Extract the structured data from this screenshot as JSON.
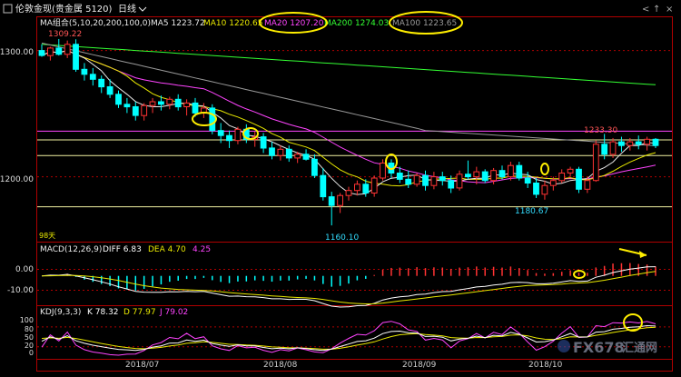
{
  "titlebar": {
    "icon": "chart-icon",
    "symbol": "伦敦金现(贵金属 5120)",
    "period": "日线",
    "dropdown_icon": "chevron-down-icon",
    "window_controls": [
      "<",
      "↑",
      "×"
    ]
  },
  "ma_legend": {
    "label": "MA组合(5,10,20,200,100,0)",
    "items": [
      {
        "text": "MA5 1223.72",
        "color": "#e8e8e8"
      },
      {
        "text": "MA10 1220.65",
        "color": "#e8e800"
      },
      {
        "text": "MA20 1207.20",
        "color": "#ff44ff"
      },
      {
        "text": "MA200 1274.03",
        "color": "#33ff33"
      },
      {
        "text": "MA100 1223.65",
        "color": "#999999"
      }
    ]
  },
  "price_axis": [
    "1300.00",
    "1200.00"
  ],
  "annotations": {
    "high_label": "1309.22",
    "low_label": "1160.10",
    "recent_high": "1233.30",
    "recent_low": "1180.67",
    "days": "98天"
  },
  "macd_legend": {
    "label": "MACD(12,26,9)",
    "diff": "DIFF 6.83",
    "dea": "DEA 4.70",
    "macd": "4.25"
  },
  "macd_axis": [
    "0.00",
    "-10.00"
  ],
  "kdj_legend": {
    "label": "KDJ(9,3,3)",
    "k": "K 78.32",
    "d": "D 77.97",
    "j": "J 79.02"
  },
  "kdj_axis": [
    "100",
    "80",
    "50",
    "20",
    "0"
  ],
  "x_axis": [
    "2018/07",
    "2018/08",
    "2018/09",
    "2018/10"
  ],
  "watermark": {
    "logo": "FX678",
    "text": "汇通网"
  },
  "colors": {
    "up": "#ff3333",
    "down": "#00ffff",
    "ma5": "#e8e8e8",
    "ma10": "#e8e800",
    "ma20": "#ff44ff",
    "ma200": "#33ff33",
    "ma100": "#999999",
    "diff": "#ffffff",
    "dea": "#e8e800",
    "k": "#ffffff",
    "d": "#e8e800",
    "j": "#ff44ff",
    "highlight": "#ffee00"
  },
  "chart_data": {
    "type": "candlestick",
    "y_range": [
      1150,
      1315
    ],
    "candles": [
      {
        "o": 1300,
        "h": 1305,
        "l": 1295,
        "c": 1296
      },
      {
        "o": 1296,
        "h": 1303,
        "l": 1292,
        "c": 1302
      },
      {
        "o": 1302,
        "h": 1309.22,
        "l": 1296,
        "c": 1297
      },
      {
        "o": 1297,
        "h": 1308,
        "l": 1294,
        "c": 1305
      },
      {
        "o": 1305,
        "h": 1309,
        "l": 1283,
        "c": 1285
      },
      {
        "o": 1285,
        "h": 1290,
        "l": 1276,
        "c": 1281
      },
      {
        "o": 1281,
        "h": 1286,
        "l": 1272,
        "c": 1277
      },
      {
        "o": 1277,
        "h": 1280,
        "l": 1266,
        "c": 1271
      },
      {
        "o": 1271,
        "h": 1277,
        "l": 1262,
        "c": 1265
      },
      {
        "o": 1265,
        "h": 1268,
        "l": 1254,
        "c": 1257
      },
      {
        "o": 1257,
        "h": 1262,
        "l": 1250,
        "c": 1255
      },
      {
        "o": 1255,
        "h": 1259,
        "l": 1244,
        "c": 1248
      },
      {
        "o": 1248,
        "h": 1258,
        "l": 1244,
        "c": 1256
      },
      {
        "o": 1256,
        "h": 1262,
        "l": 1250,
        "c": 1259
      },
      {
        "o": 1259,
        "h": 1264,
        "l": 1252,
        "c": 1257
      },
      {
        "o": 1257,
        "h": 1263,
        "l": 1253,
        "c": 1261
      },
      {
        "o": 1261,
        "h": 1265,
        "l": 1252,
        "c": 1255
      },
      {
        "o": 1255,
        "h": 1261,
        "l": 1248,
        "c": 1258
      },
      {
        "o": 1258,
        "h": 1262,
        "l": 1247,
        "c": 1250
      },
      {
        "o": 1250,
        "h": 1258,
        "l": 1246,
        "c": 1254
      },
      {
        "o": 1254,
        "h": 1257,
        "l": 1233,
        "c": 1236
      },
      {
        "o": 1236,
        "h": 1242,
        "l": 1226,
        "c": 1232
      },
      {
        "o": 1232,
        "h": 1236,
        "l": 1222,
        "c": 1228
      },
      {
        "o": 1228,
        "h": 1239,
        "l": 1225,
        "c": 1237
      },
      {
        "o": 1237,
        "h": 1241,
        "l": 1226,
        "c": 1229
      },
      {
        "o": 1229,
        "h": 1235,
        "l": 1223,
        "c": 1231
      },
      {
        "o": 1231,
        "h": 1234,
        "l": 1218,
        "c": 1222
      },
      {
        "o": 1222,
        "h": 1227,
        "l": 1213,
        "c": 1216
      },
      {
        "o": 1216,
        "h": 1224,
        "l": 1212,
        "c": 1221
      },
      {
        "o": 1221,
        "h": 1224,
        "l": 1211,
        "c": 1214
      },
      {
        "o": 1214,
        "h": 1219,
        "l": 1210,
        "c": 1217
      },
      {
        "o": 1217,
        "h": 1221,
        "l": 1212,
        "c": 1213
      },
      {
        "o": 1213,
        "h": 1217,
        "l": 1198,
        "c": 1200
      },
      {
        "o": 1200,
        "h": 1206,
        "l": 1180,
        "c": 1183
      },
      {
        "o": 1183,
        "h": 1187,
        "l": 1160.1,
        "c": 1176
      },
      {
        "o": 1176,
        "h": 1186,
        "l": 1170,
        "c": 1184
      },
      {
        "o": 1184,
        "h": 1191,
        "l": 1180,
        "c": 1188
      },
      {
        "o": 1188,
        "h": 1196,
        "l": 1184,
        "c": 1193
      },
      {
        "o": 1193,
        "h": 1197,
        "l": 1183,
        "c": 1186
      },
      {
        "o": 1186,
        "h": 1200,
        "l": 1183,
        "c": 1198
      },
      {
        "o": 1198,
        "h": 1213,
        "l": 1196,
        "c": 1210
      },
      {
        "o": 1210,
        "h": 1213,
        "l": 1198,
        "c": 1202
      },
      {
        "o": 1202,
        "h": 1207,
        "l": 1194,
        "c": 1197
      },
      {
        "o": 1197,
        "h": 1204,
        "l": 1190,
        "c": 1193
      },
      {
        "o": 1193,
        "h": 1202,
        "l": 1191,
        "c": 1200
      },
      {
        "o": 1200,
        "h": 1204,
        "l": 1188,
        "c": 1192
      },
      {
        "o": 1192,
        "h": 1203,
        "l": 1189,
        "c": 1199
      },
      {
        "o": 1199,
        "h": 1203,
        "l": 1192,
        "c": 1196
      },
      {
        "o": 1196,
        "h": 1200,
        "l": 1186,
        "c": 1190
      },
      {
        "o": 1190,
        "h": 1204,
        "l": 1188,
        "c": 1201
      },
      {
        "o": 1201,
        "h": 1212,
        "l": 1197,
        "c": 1199
      },
      {
        "o": 1199,
        "h": 1207,
        "l": 1193,
        "c": 1203
      },
      {
        "o": 1203,
        "h": 1205,
        "l": 1194,
        "c": 1196
      },
      {
        "o": 1196,
        "h": 1206,
        "l": 1193,
        "c": 1204
      },
      {
        "o": 1204,
        "h": 1208,
        "l": 1197,
        "c": 1199
      },
      {
        "o": 1199,
        "h": 1211,
        "l": 1196,
        "c": 1208
      },
      {
        "o": 1208,
        "h": 1211,
        "l": 1196,
        "c": 1198
      },
      {
        "o": 1198,
        "h": 1203,
        "l": 1190,
        "c": 1194
      },
      {
        "o": 1194,
        "h": 1198,
        "l": 1182,
        "c": 1185
      },
      {
        "o": 1185,
        "h": 1196,
        "l": 1180.67,
        "c": 1192
      },
      {
        "o": 1192,
        "h": 1199,
        "l": 1188,
        "c": 1196
      },
      {
        "o": 1196,
        "h": 1205,
        "l": 1194,
        "c": 1202
      },
      {
        "o": 1202,
        "h": 1207,
        "l": 1199,
        "c": 1205
      },
      {
        "o": 1205,
        "h": 1207,
        "l": 1186,
        "c": 1189
      },
      {
        "o": 1189,
        "h": 1199,
        "l": 1186,
        "c": 1196
      },
      {
        "o": 1196,
        "h": 1228,
        "l": 1195,
        "c": 1225
      },
      {
        "o": 1225,
        "h": 1233.3,
        "l": 1213,
        "c": 1217
      },
      {
        "o": 1217,
        "h": 1230,
        "l": 1214,
        "c": 1227
      },
      {
        "o": 1227,
        "h": 1231,
        "l": 1219,
        "c": 1224
      },
      {
        "o": 1224,
        "h": 1230,
        "l": 1220,
        "c": 1227
      },
      {
        "o": 1227,
        "h": 1232,
        "l": 1221,
        "c": 1225
      },
      {
        "o": 1225,
        "h": 1231,
        "l": 1220,
        "c": 1229
      },
      {
        "o": 1229,
        "h": 1230,
        "l": 1222,
        "c": 1224
      }
    ],
    "hlines": [
      {
        "y": 1235.5,
        "color": "#ff44ff"
      },
      {
        "y": 1228.5,
        "color": "#f0f0a0"
      },
      {
        "y": 1216,
        "color": "#f0f0a0"
      },
      {
        "y": 1175,
        "color": "#f0f0a0"
      }
    ],
    "macd_range": [
      -16,
      12
    ],
    "kdj_range": [
      -8,
      110
    ]
  }
}
